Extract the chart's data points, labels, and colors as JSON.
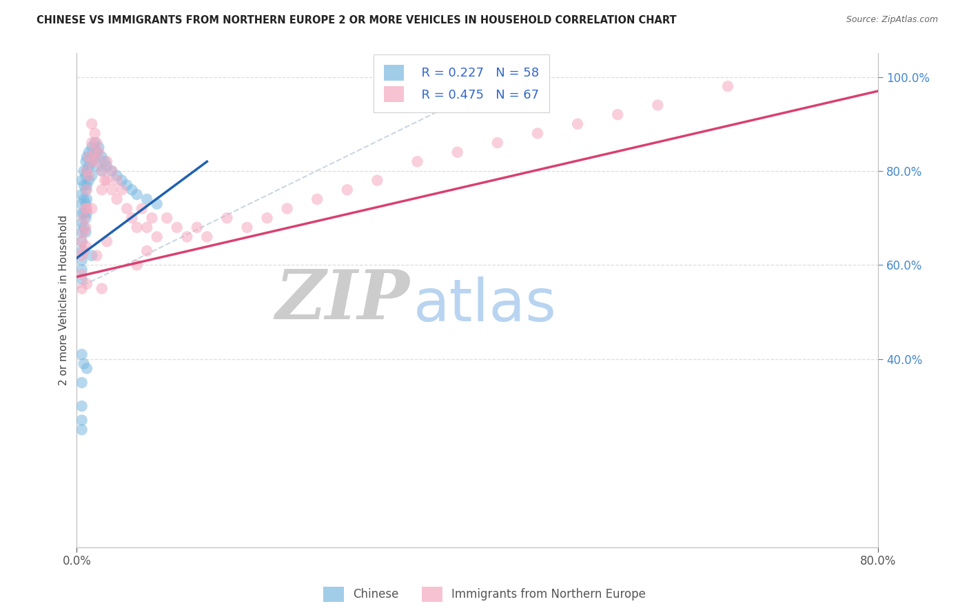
{
  "title": "CHINESE VS IMMIGRANTS FROM NORTHERN EUROPE 2 OR MORE VEHICLES IN HOUSEHOLD CORRELATION CHART",
  "source": "Source: ZipAtlas.com",
  "ylabel": "2 or more Vehicles in Household",
  "x_min": 0.0,
  "x_max": 0.8,
  "y_min": 0.0,
  "y_max": 1.05,
  "yticks": [
    0.4,
    0.6,
    0.8,
    1.0
  ],
  "xticks": [
    0.0,
    0.8
  ],
  "legend_r1": "R = 0.227",
  "legend_n1": "N = 58",
  "legend_r2": "R = 0.475",
  "legend_n2": "N = 67",
  "legend_label1": "Chinese",
  "legend_label2": "Immigrants from Northern Europe",
  "color_blue_scatter": "#7ab8e0",
  "color_pink_scatter": "#f5a8bf",
  "color_blue_line": "#2060b0",
  "color_pink_line": "#d94070",
  "color_diag_line": "#bbccdd",
  "color_legend_r": "#3366cc",
  "color_legend_n": "#3366cc",
  "color_right_tick": "#4488cc",
  "color_grid": "#dddddd",
  "color_bg": "#ffffff",
  "watermark_zip_color": "#cccccc",
  "watermark_atlas_color": "#b8d4f0",
  "chinese_x": [
    0.005,
    0.005,
    0.005,
    0.005,
    0.005,
    0.005,
    0.005,
    0.005,
    0.005,
    0.005,
    0.005,
    0.007,
    0.007,
    0.007,
    0.007,
    0.007,
    0.009,
    0.009,
    0.009,
    0.009,
    0.009,
    0.009,
    0.01,
    0.01,
    0.01,
    0.01,
    0.01,
    0.012,
    0.012,
    0.012,
    0.015,
    0.015,
    0.015,
    0.018,
    0.018,
    0.02,
    0.02,
    0.022,
    0.025,
    0.025,
    0.028,
    0.03,
    0.035,
    0.04,
    0.045,
    0.05,
    0.055,
    0.06,
    0.07,
    0.08,
    0.005,
    0.007,
    0.01,
    0.015,
    0.005,
    0.005,
    0.005,
    0.005
  ],
  "chinese_y": [
    0.78,
    0.75,
    0.73,
    0.71,
    0.69,
    0.67,
    0.65,
    0.63,
    0.61,
    0.59,
    0.57,
    0.8,
    0.77,
    0.74,
    0.71,
    0.68,
    0.82,
    0.79,
    0.76,
    0.73,
    0.7,
    0.67,
    0.83,
    0.8,
    0.77,
    0.74,
    0.71,
    0.84,
    0.81,
    0.78,
    0.85,
    0.82,
    0.79,
    0.86,
    0.83,
    0.84,
    0.81,
    0.85,
    0.83,
    0.8,
    0.82,
    0.81,
    0.8,
    0.79,
    0.78,
    0.77,
    0.76,
    0.75,
    0.74,
    0.73,
    0.41,
    0.39,
    0.38,
    0.62,
    0.35,
    0.3,
    0.27,
    0.25
  ],
  "north_eu_x": [
    0.005,
    0.005,
    0.005,
    0.005,
    0.007,
    0.007,
    0.007,
    0.009,
    0.009,
    0.009,
    0.01,
    0.01,
    0.01,
    0.012,
    0.012,
    0.015,
    0.015,
    0.015,
    0.018,
    0.018,
    0.02,
    0.02,
    0.022,
    0.025,
    0.025,
    0.028,
    0.03,
    0.03,
    0.035,
    0.035,
    0.04,
    0.04,
    0.045,
    0.05,
    0.055,
    0.06,
    0.065,
    0.07,
    0.075,
    0.08,
    0.09,
    0.1,
    0.11,
    0.12,
    0.13,
    0.15,
    0.17,
    0.19,
    0.21,
    0.24,
    0.27,
    0.3,
    0.34,
    0.38,
    0.42,
    0.46,
    0.5,
    0.54,
    0.58,
    0.65,
    0.01,
    0.02,
    0.03,
    0.015,
    0.025,
    0.06,
    0.07
  ],
  "north_eu_y": [
    0.65,
    0.62,
    0.58,
    0.55,
    0.7,
    0.67,
    0.63,
    0.72,
    0.68,
    0.64,
    0.8,
    0.76,
    0.72,
    0.83,
    0.79,
    0.9,
    0.86,
    0.82,
    0.88,
    0.84,
    0.86,
    0.82,
    0.84,
    0.8,
    0.76,
    0.78,
    0.82,
    0.78,
    0.8,
    0.76,
    0.78,
    0.74,
    0.76,
    0.72,
    0.7,
    0.68,
    0.72,
    0.68,
    0.7,
    0.66,
    0.7,
    0.68,
    0.66,
    0.68,
    0.66,
    0.7,
    0.68,
    0.7,
    0.72,
    0.74,
    0.76,
    0.78,
    0.82,
    0.84,
    0.86,
    0.88,
    0.9,
    0.92,
    0.94,
    0.98,
    0.56,
    0.62,
    0.65,
    0.72,
    0.55,
    0.6,
    0.63
  ],
  "diag_line_x": [
    0.0,
    0.45
  ],
  "diag_line_y": [
    0.55,
    1.02
  ],
  "blue_line_x": [
    0.0,
    0.13
  ],
  "blue_line_y": [
    0.615,
    0.82
  ],
  "pink_line_x": [
    0.0,
    0.8
  ],
  "pink_line_y": [
    0.575,
    0.97
  ]
}
